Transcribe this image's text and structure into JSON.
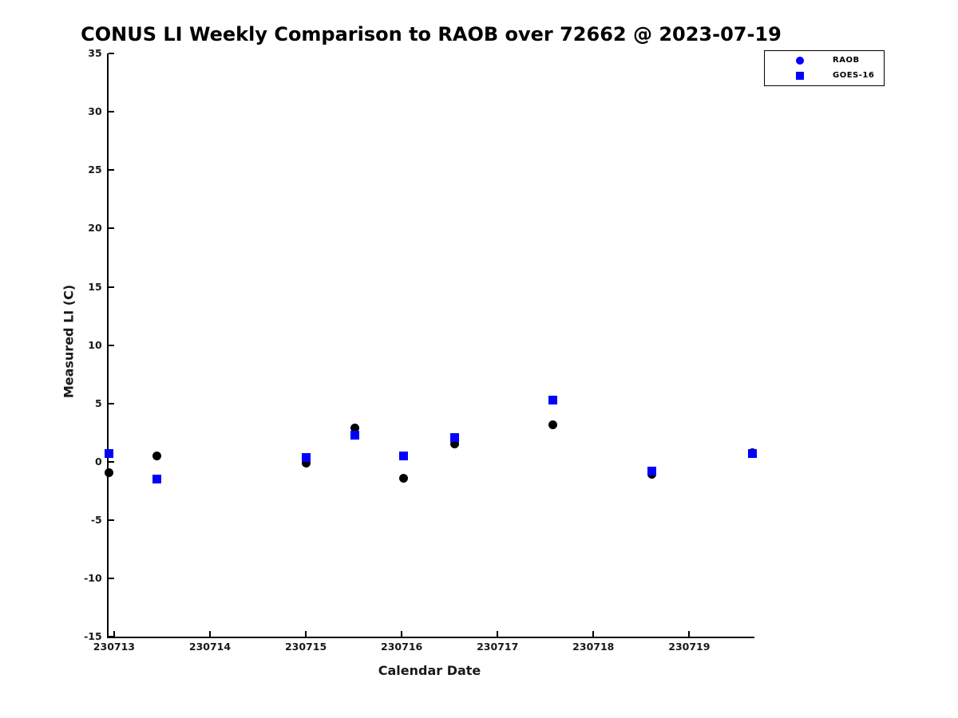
{
  "title": "CONUS LI Weekly Comparison to RAOB over 72662 @ 2023-07-19",
  "colors": {
    "raob_marker": "#000000",
    "goes16_marker": "#0000ff",
    "legend_raob_marker": "#0000ff",
    "legend_goes16_marker": "#0000ff",
    "axis": "#000000",
    "background": "#ffffff"
  },
  "legend": {
    "items": [
      {
        "label": "RAOB",
        "marker": "circle"
      },
      {
        "label": "GOES-16",
        "marker": "square"
      }
    ],
    "position": "top-right"
  },
  "chart_data": {
    "type": "scatter",
    "title": "CONUS LI Weekly Comparison to RAOB over 72662 @ 2023-07-19",
    "xlabel": "Calendar Date",
    "ylabel": "Measured LI (C)",
    "xlim": [
      230712.94,
      230719.68
    ],
    "ylim": [
      -15,
      35
    ],
    "x_ticks": [
      230713,
      230714,
      230715,
      230716,
      230717,
      230718,
      230719
    ],
    "y_ticks": [
      -15,
      -10,
      -5,
      0,
      5,
      10,
      15,
      20,
      25,
      30,
      35
    ],
    "grid": false,
    "legend_position": "top-right",
    "series": [
      {
        "name": "RAOB",
        "marker": "circle",
        "color": "#000000",
        "points": [
          [
            230712.95,
            -0.9
          ],
          [
            230713.45,
            0.5
          ],
          [
            230715.0,
            -0.1
          ],
          [
            230715.51,
            2.9
          ],
          [
            230716.02,
            -1.4
          ],
          [
            230716.55,
            1.5
          ],
          [
            230717.58,
            3.2
          ],
          [
            230718.61,
            -1.1
          ],
          [
            230719.66,
            0.8
          ]
        ]
      },
      {
        "name": "GOES-16",
        "marker": "square",
        "color": "#0000ff",
        "points": [
          [
            230712.95,
            0.7
          ],
          [
            230713.45,
            -1.5
          ],
          [
            230715.0,
            0.4
          ],
          [
            230715.51,
            2.3
          ],
          [
            230716.02,
            0.5
          ],
          [
            230716.55,
            2.1
          ],
          [
            230717.58,
            5.3
          ],
          [
            230718.61,
            -0.8
          ],
          [
            230719.66,
            0.7
          ]
        ]
      }
    ]
  }
}
